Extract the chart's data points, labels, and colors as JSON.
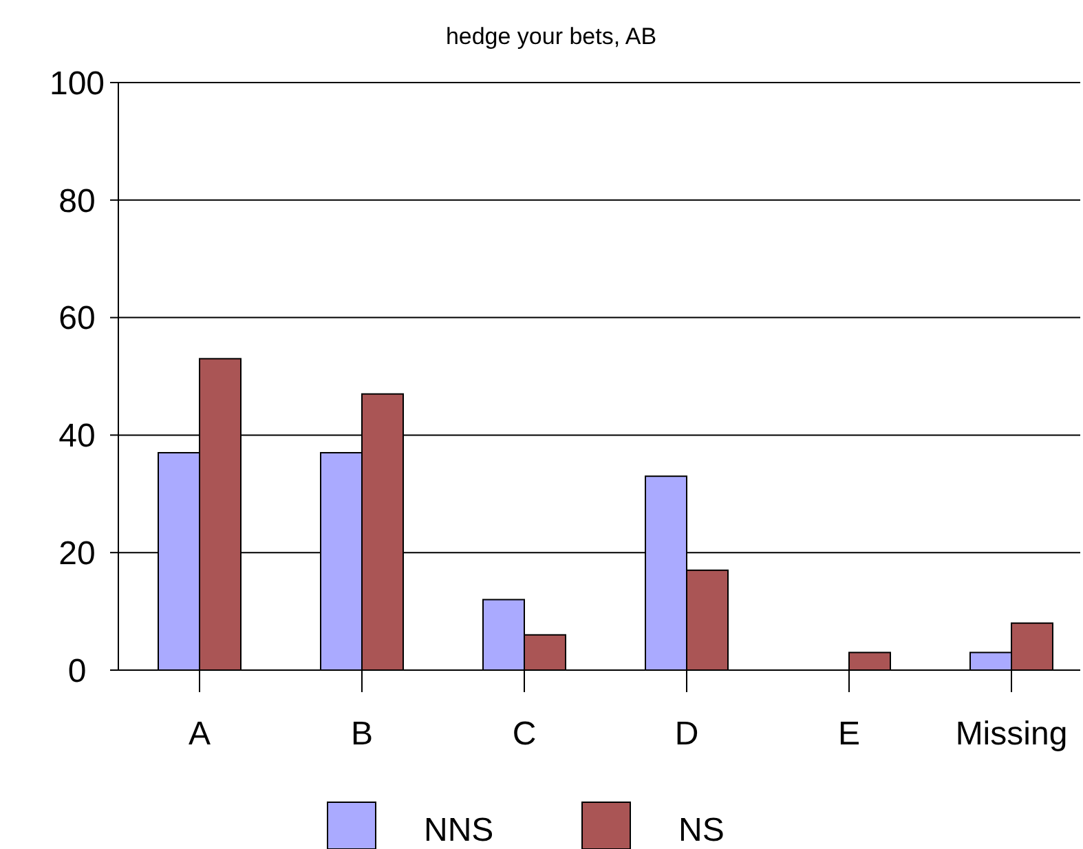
{
  "chart_data": {
    "type": "bar",
    "title": "hedge your bets, AB",
    "categories": [
      "A",
      "B",
      "C",
      "D",
      "E",
      "Missing"
    ],
    "series": [
      {
        "name": "NNS",
        "color": "#aaaaff",
        "values": [
          37,
          37,
          12,
          33,
          0,
          3
        ]
      },
      {
        "name": "NS",
        "color": "#aa5555",
        "values": [
          53,
          47,
          6,
          17,
          3,
          8
        ]
      }
    ],
    "ylim": [
      0,
      100
    ],
    "yticks": [
      0,
      20,
      40,
      60,
      80,
      100
    ],
    "grid": "y",
    "legend": "bottom"
  }
}
